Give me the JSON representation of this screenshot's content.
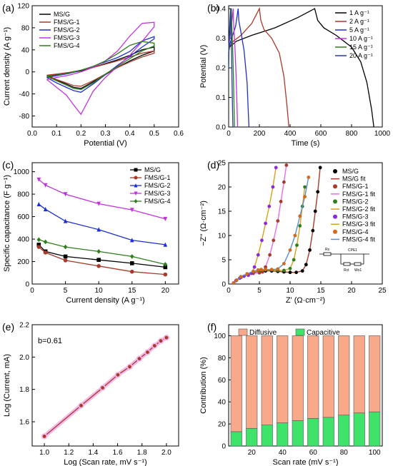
{
  "chart_data": [
    {
      "id": "a",
      "panel_label": "(a)",
      "type": "line",
      "xlabel": "Potential (V)",
      "ylabel": "Current density (A g⁻¹)",
      "xlim": [
        0.0,
        0.6
      ],
      "ylim": [
        -100,
        120
      ],
      "xticks": [
        0.0,
        0.1,
        0.2,
        0.3,
        0.4,
        0.5,
        0.6
      ],
      "yticks": [
        -80,
        -40,
        0,
        40,
        80,
        120
      ],
      "legend": "top-left",
      "series": [
        {
          "name": "MS/G",
          "color": "#000000",
          "x": [
            0.06,
            0.1,
            0.15,
            0.2,
            0.25,
            0.3,
            0.35,
            0.4,
            0.45,
            0.5,
            0.5,
            0.45,
            0.4,
            0.35,
            0.3,
            0.25,
            0.2,
            0.17,
            0.14,
            0.1,
            0.06
          ],
          "y": [
            -8,
            -5,
            -2,
            2,
            8,
            15,
            22,
            30,
            40,
            45,
            38,
            30,
            20,
            8,
            -5,
            -18,
            -30,
            -28,
            -22,
            -15,
            -8
          ]
        },
        {
          "name": "FMS/G-1",
          "color": "#a83a2a",
          "x": [
            0.06,
            0.1,
            0.15,
            0.2,
            0.25,
            0.3,
            0.35,
            0.4,
            0.45,
            0.5,
            0.5,
            0.45,
            0.4,
            0.35,
            0.3,
            0.25,
            0.2,
            0.17,
            0.14,
            0.1,
            0.06
          ],
          "y": [
            -6,
            -4,
            -1,
            3,
            8,
            14,
            20,
            27,
            34,
            38,
            34,
            27,
            18,
            8,
            -4,
            -16,
            -26,
            -25,
            -20,
            -14,
            -6
          ]
        },
        {
          "name": "FMS/G-2",
          "color": "#1d2fd0",
          "x": [
            0.06,
            0.1,
            0.15,
            0.2,
            0.25,
            0.3,
            0.35,
            0.4,
            0.45,
            0.5,
            0.5,
            0.45,
            0.4,
            0.35,
            0.3,
            0.25,
            0.2,
            0.17,
            0.14,
            0.1,
            0.06
          ],
          "y": [
            -10,
            -7,
            -3,
            3,
            10,
            18,
            26,
            37,
            56,
            64,
            60,
            45,
            28,
            12,
            -5,
            -22,
            -37,
            -34,
            -28,
            -20,
            -10
          ]
        },
        {
          "name": "FMS/G-3",
          "color": "#c233e0",
          "x": [
            0.06,
            0.1,
            0.15,
            0.2,
            0.25,
            0.3,
            0.35,
            0.4,
            0.45,
            0.5,
            0.5,
            0.45,
            0.4,
            0.35,
            0.3,
            0.25,
            0.2,
            0.17,
            0.14,
            0.1,
            0.06
          ],
          "y": [
            -14,
            -10,
            -6,
            0,
            8,
            20,
            38,
            65,
            88,
            90,
            82,
            55,
            30,
            10,
            -10,
            -35,
            -77,
            -60,
            -42,
            -28,
            -14
          ]
        },
        {
          "name": "FMS/G-4",
          "color": "#2f7d1c",
          "x": [
            0.06,
            0.1,
            0.15,
            0.2,
            0.25,
            0.3,
            0.35,
            0.4,
            0.45,
            0.5,
            0.5,
            0.45,
            0.4,
            0.35,
            0.3,
            0.25,
            0.2,
            0.17,
            0.14,
            0.1,
            0.06
          ],
          "y": [
            -8,
            -6,
            -2,
            3,
            10,
            20,
            33,
            48,
            55,
            52,
            47,
            38,
            24,
            10,
            -4,
            -20,
            -32,
            -30,
            -24,
            -16,
            -8
          ]
        }
      ]
    },
    {
      "id": "b",
      "panel_label": "(b)",
      "type": "line",
      "xlabel": "Time (s)",
      "ylabel": "Potential (V)",
      "xlim": [
        0,
        1000
      ],
      "ylim": [
        0.0,
        0.41
      ],
      "xticks": [
        0,
        200,
        400,
        600,
        800,
        1000
      ],
      "yticks": [
        0.0,
        0.1,
        0.2,
        0.3,
        0.4
      ],
      "legend": "top-right",
      "series": [
        {
          "name": "1 A g⁻¹",
          "color": "#000000",
          "x": [
            0,
            5,
            50,
            150,
            300,
            450,
            560,
            580,
            620,
            700,
            800,
            860,
            900,
            930,
            945
          ],
          "y": [
            0.25,
            0.27,
            0.29,
            0.31,
            0.335,
            0.37,
            0.4,
            0.36,
            0.335,
            0.31,
            0.27,
            0.22,
            0.15,
            0.06,
            0.0
          ]
        },
        {
          "name": "2 A g⁻¹",
          "color": "#a83a2a",
          "x": [
            0,
            3,
            30,
            80,
            150,
            200,
            210,
            230,
            280,
            330,
            360,
            380,
            392
          ],
          "y": [
            0.25,
            0.27,
            0.29,
            0.31,
            0.35,
            0.4,
            0.36,
            0.33,
            0.3,
            0.25,
            0.17,
            0.07,
            0.0
          ]
        },
        {
          "name": "5 A g⁻¹",
          "color": "#1d2fd0",
          "x": [
            0,
            2,
            20,
            45,
            62,
            66,
            80,
            100,
            120,
            128,
            132
          ],
          "y": [
            0.24,
            0.27,
            0.3,
            0.34,
            0.4,
            0.36,
            0.32,
            0.26,
            0.15,
            0.05,
            0.0
          ]
        },
        {
          "name": "10 A g⁻¹",
          "color": "#c233e0",
          "x": [
            0,
            1,
            12,
            22,
            30,
            32,
            40,
            48,
            55,
            58
          ],
          "y": [
            0.22,
            0.27,
            0.32,
            0.36,
            0.4,
            0.35,
            0.28,
            0.18,
            0.06,
            0.0
          ]
        },
        {
          "name": "15 A g⁻¹",
          "color": "#2f7d1c",
          "x": [
            0,
            1,
            8,
            14,
            18,
            20,
            26,
            32,
            36,
            38
          ],
          "y": [
            0.21,
            0.27,
            0.33,
            0.37,
            0.4,
            0.35,
            0.27,
            0.15,
            0.05,
            0.0
          ]
        },
        {
          "name": "20 A g⁻¹",
          "color": "#1f3d9a",
          "x": [
            0,
            1,
            6,
            10,
            13,
            15,
            19,
            23,
            26,
            28
          ],
          "y": [
            0.2,
            0.27,
            0.33,
            0.37,
            0.4,
            0.34,
            0.25,
            0.13,
            0.04,
            0.0
          ]
        }
      ]
    },
    {
      "id": "c",
      "panel_label": "(c)",
      "type": "line",
      "xlabel": "Current density (A g⁻¹)",
      "ylabel": "Specific capacitance (F g⁻¹)",
      "xlim": [
        0,
        22
      ],
      "ylim": [
        0,
        1080
      ],
      "xticks": [
        0,
        5,
        10,
        15,
        20
      ],
      "yticks": [
        0,
        200,
        400,
        600,
        800,
        1000
      ],
      "legend": "top-right",
      "series": [
        {
          "name": "MS/G",
          "color": "#000000",
          "marker": "square",
          "x": [
            1,
            2,
            5,
            10,
            15,
            20
          ],
          "y": [
            350,
            290,
            245,
            215,
            185,
            150
          ]
        },
        {
          "name": "FMS/G-1",
          "color": "#a83a2a",
          "marker": "circle",
          "x": [
            1,
            2,
            5,
            10,
            15,
            20
          ],
          "y": [
            330,
            280,
            210,
            160,
            110,
            85
          ]
        },
        {
          "name": "FMS/G-2",
          "color": "#1d2fd0",
          "marker": "triangle-up",
          "x": [
            1,
            2,
            5,
            10,
            15,
            20
          ],
          "y": [
            710,
            665,
            560,
            485,
            390,
            350
          ]
        },
        {
          "name": "FMS/G-3",
          "color": "#c233e0",
          "marker": "triangle-down",
          "x": [
            1,
            2,
            5,
            10,
            15,
            20
          ],
          "y": [
            930,
            880,
            800,
            715,
            660,
            580
          ]
        },
        {
          "name": "FMS/G-4",
          "color": "#2f7d1c",
          "marker": "diamond",
          "x": [
            1,
            2,
            5,
            10,
            15,
            20
          ],
          "y": [
            395,
            375,
            330,
            290,
            245,
            175
          ]
        }
      ]
    },
    {
      "id": "d",
      "panel_label": "(d)",
      "type": "scatter",
      "xlabel": "Z' (Ω·cm⁻²)",
      "ylabel": "−Z'' (Ω·cm⁻²)",
      "xlim": [
        0,
        25
      ],
      "ylim": [
        0,
        25
      ],
      "xticks": [
        0,
        5,
        10,
        15,
        20,
        25
      ],
      "yticks": [
        0,
        5,
        10,
        15,
        20,
        25
      ],
      "legend": "top-right",
      "legend_entries": [
        "MS/G",
        "MS/G fit",
        "FMS/G-1",
        "FMS/G-1 fit",
        "FMS/G-2",
        "FMS/G-2 fit",
        "FMS/G-3",
        "FMS/G-3 fit",
        "FMS/G-4",
        "FMS/G-4 fit"
      ],
      "inset_labels": [
        "Rs",
        "CPE1",
        "Rct",
        "Wo1"
      ],
      "series": [
        {
          "name": "MS/G",
          "color": "#000000",
          "fit_color": "#a83a2a",
          "x": [
            0.8,
            1.2,
            2,
            3,
            4,
            5,
            6,
            7,
            8,
            9,
            10,
            11,
            12,
            12.6,
            13.2,
            13.7,
            14.1,
            14.5,
            14.9
          ],
          "y": [
            0.2,
            0.7,
            1.4,
            2.0,
            2.4,
            2.6,
            2.7,
            2.7,
            2.6,
            2.5,
            2.4,
            2.4,
            2.7,
            4,
            7,
            11,
            15,
            19,
            24
          ]
        },
        {
          "name": "FMS/G-1",
          "color": "#a83a2a",
          "fit_color": "#e76df0",
          "x": [
            0.8,
            1.3,
            2,
            3,
            4,
            5,
            5.5,
            6,
            6.7,
            7.3,
            8.0,
            8.5,
            9.0,
            9.4
          ],
          "y": [
            0.2,
            0.8,
            1.5,
            2.0,
            2.2,
            2.3,
            2.5,
            3.5,
            6,
            9,
            13,
            17,
            21,
            24.5
          ]
        },
        {
          "name": "FMS/G-2",
          "color": "#2f7d1c",
          "fit_color": "#d9a11a",
          "x": [
            0.8,
            1.3,
            2,
            3,
            4,
            5,
            6,
            7,
            8,
            9,
            10,
            10.6,
            11.1,
            11.6,
            12.0,
            12.4
          ],
          "y": [
            0.2,
            0.8,
            1.5,
            2.1,
            2.5,
            2.8,
            2.9,
            2.9,
            2.8,
            2.8,
            3.2,
            5,
            8,
            12,
            16,
            20
          ]
        },
        {
          "name": "FMS/G-3",
          "color": "#8a2bd6",
          "fit_color": "#d9a11a",
          "x": [
            0.8,
            1.2,
            1.8,
            2.5,
            3.2,
            3.7,
            4.2,
            4.8,
            5.4,
            6.0,
            6.6,
            7.2,
            7.7
          ],
          "y": [
            0.2,
            0.7,
            1.2,
            1.6,
            1.8,
            2.2,
            3.5,
            6,
            9,
            12.5,
            16,
            20,
            24
          ]
        },
        {
          "name": "FMS/G-4",
          "color": "#d2691e",
          "fit_color": "#5b8fd0",
          "x": [
            0.8,
            1.3,
            2,
            3,
            4,
            4.8,
            5.3,
            6.0,
            7.0,
            8.0,
            9.0,
            10.0,
            10.8,
            11.6,
            12.4,
            13.0
          ],
          "y": [
            0.2,
            0.8,
            1.5,
            2.1,
            2.6,
            2.9,
            3.0,
            3.0,
            3.0,
            3.1,
            4.2,
            7,
            10,
            14,
            18,
            22
          ]
        }
      ]
    },
    {
      "id": "e",
      "panel_label": "(e)",
      "type": "scatter",
      "xlabel": "Log (Scan rate, mV s⁻¹)",
      "ylabel": "Log (Current, mA)",
      "xlim": [
        0.9,
        2.1
      ],
      "ylim": [
        1.45,
        2.2
      ],
      "xticks": [
        1.0,
        1.2,
        1.4,
        1.6,
        1.8,
        2.0
      ],
      "yticks": [
        1.6,
        1.8,
        2.0,
        2.2
      ],
      "annotation": "b=0.61",
      "series": [
        {
          "name": "",
          "color": "#a83a2a",
          "x": [
            1.0,
            1.301,
            1.477,
            1.602,
            1.699,
            1.778,
            1.845,
            1.903,
            1.954,
            2.0
          ],
          "y": [
            1.51,
            1.7,
            1.81,
            1.89,
            1.94,
            1.99,
            2.03,
            2.07,
            2.1,
            2.12
          ]
        }
      ]
    },
    {
      "id": "f",
      "panel_label": "(f)",
      "type": "bar",
      "stacked": true,
      "xlabel": "Scan rate (mV s⁻¹)",
      "ylabel": "Contribution (%)",
      "xlim": [
        5,
        105
      ],
      "ylim": [
        0,
        110
      ],
      "xticks": [
        20,
        40,
        60,
        80,
        100
      ],
      "yticks": [
        0,
        20,
        40,
        60,
        80,
        100
      ],
      "legend": "top",
      "categories": [
        10,
        20,
        30,
        40,
        50,
        60,
        70,
        80,
        90,
        100
      ],
      "series": [
        {
          "name": "Capacitive",
          "color": "#3fe36a",
          "values": [
            13,
            16,
            19,
            21,
            23,
            25,
            26,
            28,
            30,
            31
          ]
        },
        {
          "name": "Diffusive",
          "color": "#f7a98a",
          "values": [
            87,
            84,
            81,
            79,
            77,
            75,
            74,
            72,
            70,
            69
          ]
        }
      ]
    }
  ]
}
